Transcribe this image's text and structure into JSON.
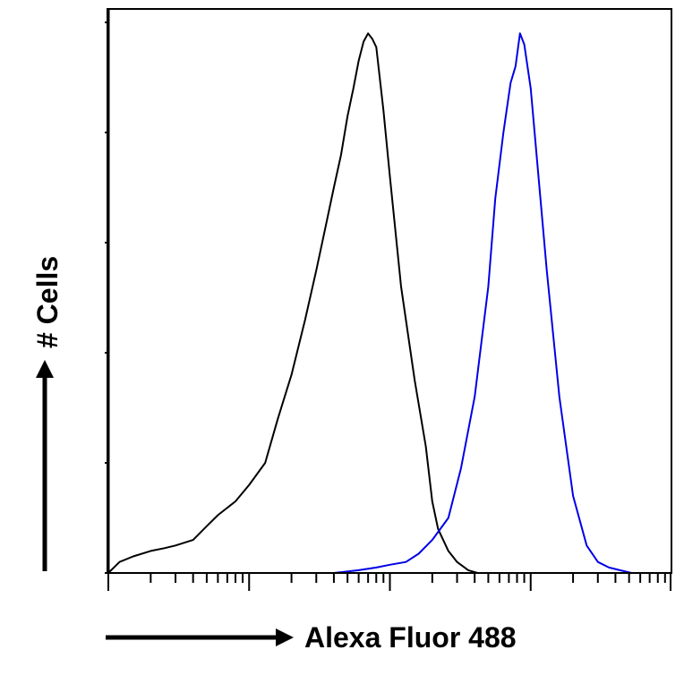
{
  "chart_data": {
    "type": "area",
    "title": "",
    "xlabel": "Alexa Fluor 488",
    "ylabel": "# Cells",
    "x_scale": "log",
    "xlim": [
      1,
      10000
    ],
    "ylim": [
      0,
      100
    ],
    "grid": false,
    "legend": "none",
    "series": [
      {
        "color": "#000000",
        "x": [
          1.0,
          1.2,
          1.5,
          2.0,
          2.5,
          3.0,
          4.0,
          5.0,
          6.0,
          8.0,
          10.0,
          13.0,
          16.0,
          20.0,
          25.0,
          30.0,
          35.0,
          40.0,
          45.0,
          50.0,
          55.0,
          60.0,
          65.0,
          70.0,
          75.0,
          80.0,
          90.0,
          100.0,
          120.0,
          150.0,
          180.0,
          200.0,
          220.0,
          260.0,
          300.0,
          360.0,
          420.0
        ],
        "values": [
          0.0,
          2.0,
          3.0,
          4.0,
          4.5,
          5.0,
          6.0,
          8.5,
          10.5,
          13.0,
          16.0,
          20.0,
          28.0,
          36.0,
          46.0,
          55.0,
          63.0,
          70.0,
          76.0,
          83.0,
          88.0,
          93.0,
          96.5,
          98.0,
          97.0,
          95.5,
          84.0,
          72.0,
          52.0,
          35.0,
          23.0,
          13.0,
          8.0,
          4.0,
          2.0,
          0.5,
          0.0
        ]
      },
      {
        "color": "#0000e6",
        "x": [
          20.0,
          40.0,
          60.0,
          80.0,
          100.0,
          130.0,
          160.0,
          200.0,
          260.0,
          320.0,
          400.0,
          500.0,
          560.0,
          640.0,
          720.0,
          780.0,
          840.0,
          900.0,
          1000.0,
          1100.0,
          1300.0,
          1600.0,
          2000.0,
          2500.0,
          3000.0,
          3600.0,
          4300.0,
          5200.0
        ],
        "values": [
          0.0,
          0.0,
          0.5,
          1.0,
          1.5,
          2.0,
          3.5,
          6.0,
          10.0,
          19.0,
          32.0,
          52.0,
          68.0,
          80.0,
          89.0,
          92.0,
          98.0,
          96.0,
          88.0,
          76.0,
          55.0,
          32.0,
          14.0,
          5.0,
          2.0,
          1.0,
          0.5,
          0.0
        ]
      }
    ]
  }
}
